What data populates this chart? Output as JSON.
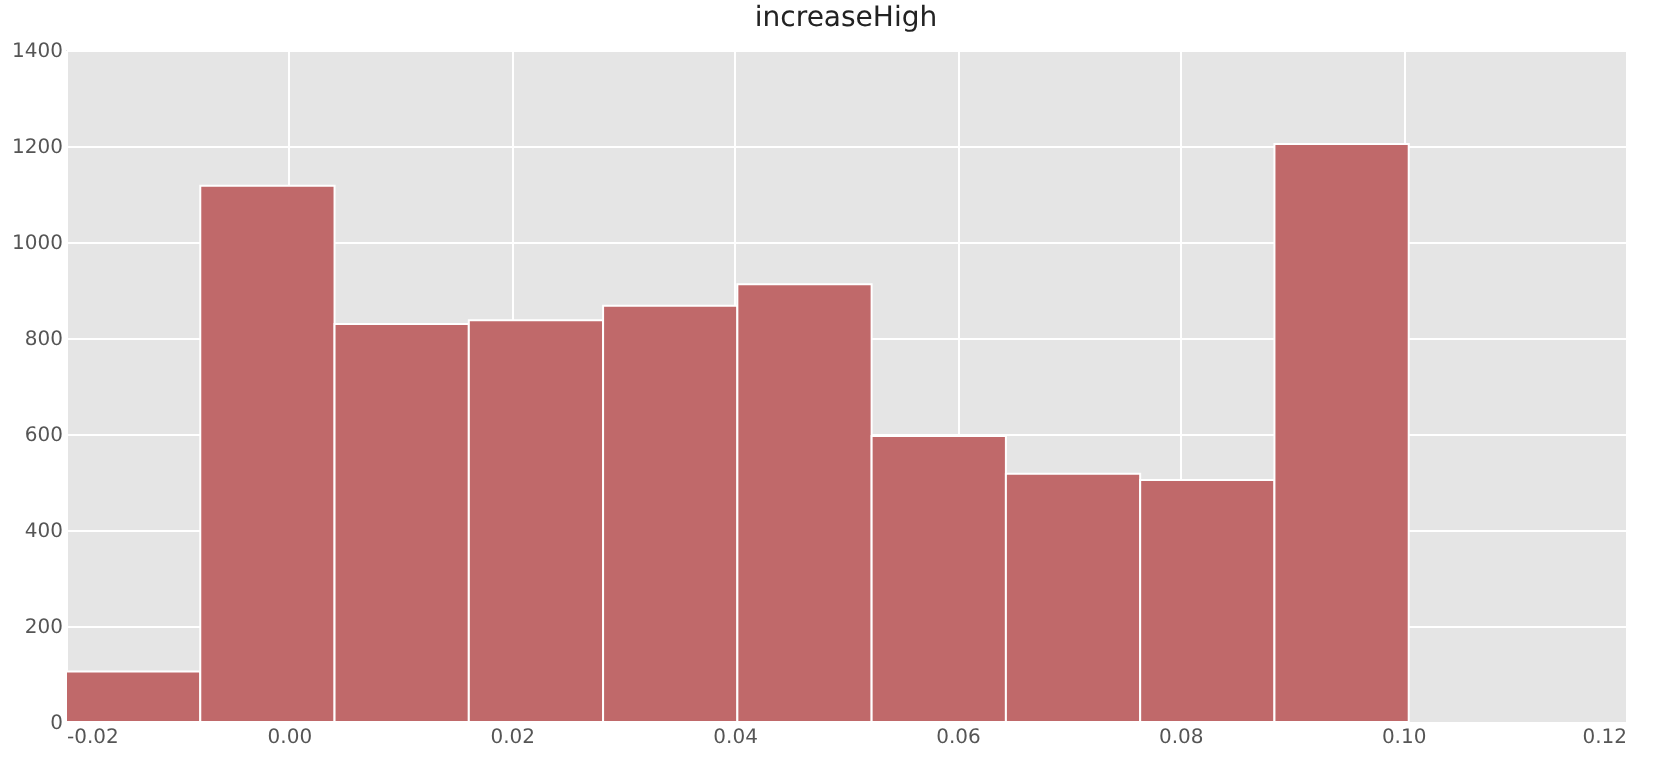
{
  "chart_data": {
    "type": "histogram",
    "title": "increaseHigh",
    "bins": [
      -0.02,
      -0.00795,
      0.0041,
      0.01615,
      0.0282,
      0.04025,
      0.0523,
      0.06435,
      0.0764,
      0.08845,
      0.1005
    ],
    "values": [
      105,
      1117,
      829,
      837,
      867,
      912,
      596,
      517,
      504,
      1204
    ],
    "color": "#c0696a",
    "xlim": [
      -0.02,
      0.12
    ],
    "xticks": [
      {
        "value": -0.02,
        "label": "-0.02"
      },
      {
        "value": 0.0,
        "label": "0.00"
      },
      {
        "value": 0.02,
        "label": "0.02"
      },
      {
        "value": 0.04,
        "label": "0.04"
      },
      {
        "value": 0.06,
        "label": "0.06"
      },
      {
        "value": 0.08,
        "label": "0.08"
      },
      {
        "value": 0.1,
        "label": "0.10"
      },
      {
        "value": 0.12,
        "label": "0.12"
      }
    ],
    "ylim": [
      0,
      1400
    ],
    "yticks": [
      0,
      200,
      400,
      600,
      800,
      1000,
      1200,
      1400
    ],
    "grid": true
  }
}
